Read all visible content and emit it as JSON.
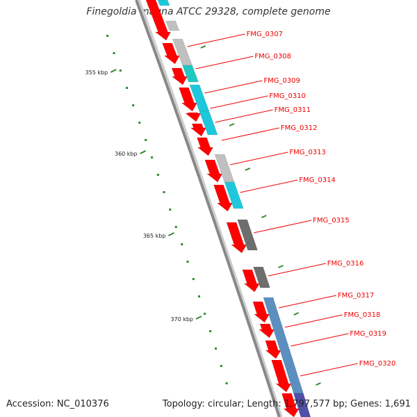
{
  "title": "Finegoldia magna ATCC 29328, complete genome",
  "footer": {
    "accession": "Accession: NC_010376",
    "summary": "Topology: circular; Length: 1,797,577 bp; Genes: 1,691"
  },
  "colors": {
    "cds": "#ff0000",
    "backbone": "#888888",
    "tick": "#2e8b2e",
    "label": "#ee0000",
    "gray": "#c0c0c0",
    "dark_gray": "#6e6e6e",
    "cyan": "#1ec8dc",
    "teal": "#20c8c0",
    "steel_blue": "#5b8fbf"
  },
  "ticks": [
    {
      "label": "355 kbp"
    },
    {
      "label": "360 kbp"
    },
    {
      "label": "365 kbp"
    },
    {
      "label": "370 kbp"
    }
  ],
  "genes": [
    {
      "label": "FMG_0307"
    },
    {
      "label": "FMG_0308"
    },
    {
      "label": "FMG_0309"
    },
    {
      "label": "FMG_0310"
    },
    {
      "label": "FMG_0311"
    },
    {
      "label": "FMG_0312"
    },
    {
      "label": "FMG_0313"
    },
    {
      "label": "FMG_0314"
    },
    {
      "label": "FMG_0315"
    },
    {
      "label": "FMG_0316"
    },
    {
      "label": "FMG_0317"
    },
    {
      "label": "FMG_0318"
    },
    {
      "label": "FMG_0319"
    },
    {
      "label": "FMG_0320"
    }
  ]
}
